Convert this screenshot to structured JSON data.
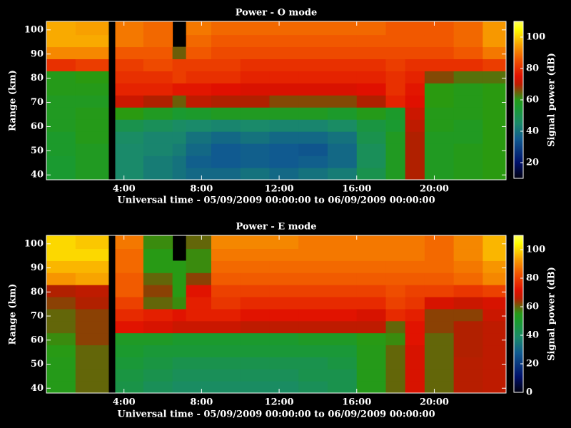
{
  "chart_data": [
    {
      "type": "heatmap",
      "title": "Power - O mode",
      "xlabel": "Universal time - 05/09/2009 00:00:00 to 06/09/2009 00:00:00",
      "ylabel": "Range (km)",
      "xlim": [
        0,
        23.7
      ],
      "ylim": [
        38,
        103.5
      ],
      "xticks": [
        {
          "value": 4,
          "label": "4:00"
        },
        {
          "value": 8,
          "label": "8:00"
        },
        {
          "value": 12,
          "label": "12:00"
        },
        {
          "value": 16,
          "label": "16:00"
        },
        {
          "value": 20,
          "label": "20:00"
        }
      ],
      "yticks": [
        40,
        50,
        60,
        70,
        80,
        90,
        100
      ],
      "xbins": [
        0,
        1.5,
        3.2,
        3.55,
        5,
        6.5,
        7.2,
        8.5,
        10,
        11.5,
        13,
        14.5,
        16,
        17.5,
        18.5,
        19.5,
        21,
        22.5,
        23.7
      ],
      "ybins": [
        38,
        43,
        48,
        53,
        58,
        63,
        68,
        73,
        78,
        83,
        88,
        93,
        98,
        103.5
      ],
      "values": [
        [
          55,
          58,
          null,
          45,
          42,
          40,
          38,
          38,
          40,
          38,
          40,
          42,
          50,
          58,
          68,
          58,
          60,
          62
        ],
        [
          55,
          58,
          null,
          45,
          42,
          40,
          36,
          35,
          36,
          35,
          36,
          38,
          48,
          58,
          68,
          58,
          60,
          62
        ],
        [
          56,
          58,
          null,
          45,
          44,
          42,
          38,
          35,
          36,
          35,
          34,
          38,
          48,
          58,
          68,
          58,
          60,
          62
        ],
        [
          56,
          60,
          null,
          46,
          44,
          44,
          40,
          38,
          40,
          38,
          38,
          40,
          50,
          58,
          68,
          58,
          58,
          62
        ],
        [
          58,
          60,
          null,
          50,
          48,
          46,
          45,
          44,
          45,
          44,
          44,
          46,
          52,
          55,
          70,
          60,
          58,
          62
        ],
        [
          58,
          60,
          null,
          62,
          58,
          55,
          56,
          58,
          58,
          58,
          58,
          56,
          60,
          56,
          72,
          60,
          60,
          62
        ],
        [
          58,
          58,
          null,
          72,
          68,
          65,
          70,
          68,
          68,
          66,
          66,
          66,
          68,
          78,
          75,
          62,
          60,
          62
        ],
        [
          60,
          60,
          null,
          78,
          78,
          76,
          76,
          75,
          74,
          74,
          74,
          74,
          75,
          80,
          76,
          62,
          60,
          62
        ],
        [
          60,
          62,
          null,
          80,
          80,
          82,
          80,
          80,
          78,
          78,
          78,
          78,
          78,
          80,
          78,
          66,
          64,
          64
        ],
        [
          80,
          82,
          null,
          82,
          84,
          82,
          82,
          82,
          80,
          80,
          80,
          80,
          80,
          82,
          80,
          80,
          80,
          82
        ],
        [
          92,
          92,
          null,
          86,
          86,
          65,
          86,
          84,
          84,
          84,
          84,
          84,
          84,
          84,
          84,
          84,
          86,
          90
        ],
        [
          96,
          96,
          null,
          90,
          88,
          null,
          88,
          86,
          86,
          86,
          86,
          86,
          86,
          86,
          86,
          86,
          88,
          94
        ],
        [
          96,
          95,
          null,
          90,
          88,
          null,
          90,
          88,
          88,
          88,
          88,
          88,
          88,
          86,
          86,
          86,
          88,
          94
        ]
      ],
      "colorbar": {
        "label": "Signal power (dB)",
        "lim": [
          10,
          110
        ],
        "ticks": [
          20,
          40,
          60,
          80,
          100
        ]
      }
    },
    {
      "type": "heatmap",
      "title": "Power - E mode",
      "xlabel": "Universal time - 05/09/2009 00:00:00 to 06/09/2009 00:00:00",
      "ylabel": "Range (km)",
      "xlim": [
        0,
        23.7
      ],
      "ylim": [
        38,
        103.5
      ],
      "xticks": [
        {
          "value": 4,
          "label": "4:00"
        },
        {
          "value": 8,
          "label": "8:00"
        },
        {
          "value": 12,
          "label": "12:00"
        },
        {
          "value": 16,
          "label": "16:00"
        },
        {
          "value": 20,
          "label": "20:00"
        }
      ],
      "yticks": [
        40,
        50,
        60,
        70,
        80,
        90,
        100
      ],
      "xbins": [
        0,
        1.5,
        3.2,
        3.55,
        5,
        6.5,
        7.2,
        8.5,
        10,
        11.5,
        13,
        14.5,
        16,
        17.5,
        18.5,
        19.5,
        21,
        22.5,
        23.7
      ],
      "ybins": [
        38,
        43,
        48,
        53,
        58,
        63,
        68,
        73,
        78,
        83,
        88,
        93,
        98,
        103.5
      ],
      "values": [
        [
          55,
          60,
          null,
          45,
          42,
          40,
          40,
          40,
          40,
          40,
          42,
          44,
          55,
          60,
          70,
          60,
          65,
          66
        ],
        [
          55,
          60,
          null,
          46,
          44,
          42,
          42,
          42,
          42,
          42,
          44,
          44,
          55,
          60,
          70,
          60,
          65,
          66
        ],
        [
          55,
          60,
          null,
          48,
          46,
          44,
          44,
          44,
          44,
          44,
          44,
          46,
          55,
          60,
          70,
          60,
          65,
          66
        ],
        [
          56,
          60,
          null,
          50,
          48,
          48,
          48,
          48,
          48,
          48,
          48,
          48,
          55,
          60,
          70,
          60,
          64,
          66
        ],
        [
          58,
          62,
          null,
          52,
          52,
          50,
          50,
          50,
          50,
          50,
          52,
          52,
          56,
          58,
          72,
          60,
          64,
          66
        ],
        [
          60,
          62,
          null,
          72,
          70,
          68,
          68,
          68,
          66,
          66,
          66,
          66,
          66,
          60,
          72,
          62,
          64,
          66
        ],
        [
          60,
          62,
          null,
          76,
          74,
          72,
          74,
          74,
          72,
          72,
          72,
          72,
          70,
          76,
          74,
          62,
          62,
          68
        ],
        [
          62,
          64,
          null,
          80,
          60,
          58,
          74,
          78,
          76,
          76,
          76,
          76,
          76,
          80,
          78,
          70,
          68,
          70
        ],
        [
          64,
          66,
          null,
          84,
          62,
          56,
          72,
          80,
          80,
          80,
          80,
          80,
          80,
          82,
          80,
          80,
          78,
          80
        ],
        [
          92,
          94,
          null,
          84,
          60,
          56,
          62,
          84,
          84,
          84,
          84,
          84,
          84,
          84,
          84,
          84,
          86,
          90
        ],
        [
          96,
          96,
          null,
          86,
          56,
          56,
          58,
          86,
          86,
          86,
          86,
          86,
          86,
          86,
          86,
          86,
          88,
          92
        ],
        [
          100,
          100,
          null,
          86,
          56,
          null,
          58,
          88,
          88,
          88,
          88,
          88,
          88,
          88,
          88,
          86,
          90,
          96
        ],
        [
          100,
          98,
          null,
          88,
          58,
          null,
          60,
          90,
          90,
          90,
          88,
          88,
          88,
          88,
          88,
          86,
          90,
          96
        ]
      ],
      "colorbar": {
        "label": "Signal power (dB)",
        "lim": [
          0,
          110
        ],
        "ticks": [
          0,
          20,
          40,
          60,
          80,
          100
        ]
      }
    }
  ]
}
